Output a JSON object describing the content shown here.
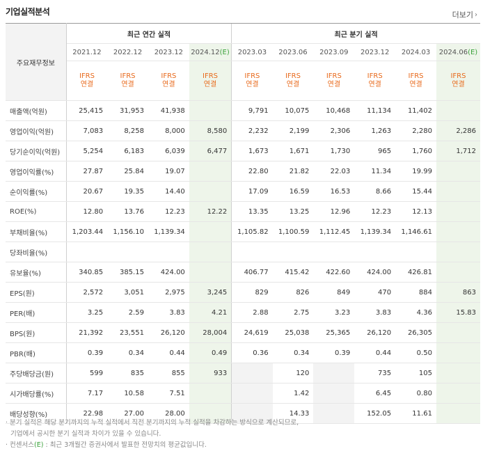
{
  "title": "기업실적분석",
  "more_label": "더보기",
  "row_header_label": "주요재무정보",
  "group_annual": "최근 연간 실적",
  "group_quarter": "최근 분기 실적",
  "periods": [
    {
      "date": "2021.12",
      "est": false
    },
    {
      "date": "2022.12",
      "est": false
    },
    {
      "date": "2023.12",
      "est": false
    },
    {
      "date": "2024.12(E)",
      "est": true
    },
    {
      "date": "2023.03",
      "est": false
    },
    {
      "date": "2023.06",
      "est": false
    },
    {
      "date": "2023.09",
      "est": false
    },
    {
      "date": "2023.12",
      "est": false
    },
    {
      "date": "2024.03",
      "est": false
    },
    {
      "date": "2024.06(E)",
      "est": true
    }
  ],
  "ifrs_line1": "IFRS",
  "ifrs_line2": "연결",
  "rows": [
    {
      "label": "매출액(억원)",
      "values": [
        "25,415",
        "31,953",
        "41,938",
        "",
        "9,791",
        "10,075",
        "10,468",
        "11,134",
        "11,402",
        ""
      ]
    },
    {
      "label": "영업이익(억원)",
      "values": [
        "7,083",
        "8,258",
        "8,000",
        "8,580",
        "2,232",
        "2,199",
        "2,306",
        "1,263",
        "2,280",
        "2,286"
      ]
    },
    {
      "label": "당기순이익(억원)",
      "values": [
        "5,254",
        "6,183",
        "6,039",
        "6,477",
        "1,673",
        "1,671",
        "1,730",
        "965",
        "1,760",
        "1,712"
      ]
    },
    {
      "label": "영업이익률(%)",
      "values": [
        "27.87",
        "25.84",
        "19.07",
        "",
        "22.80",
        "21.82",
        "22.03",
        "11.34",
        "19.99",
        ""
      ]
    },
    {
      "label": "순이익률(%)",
      "values": [
        "20.67",
        "19.35",
        "14.40",
        "",
        "17.09",
        "16.59",
        "16.53",
        "8.66",
        "15.44",
        ""
      ]
    },
    {
      "label": "ROE(%)",
      "values": [
        "12.80",
        "13.76",
        "12.23",
        "12.22",
        "13.35",
        "13.25",
        "12.96",
        "12.23",
        "12.13",
        ""
      ]
    },
    {
      "label": "부채비율(%)",
      "values": [
        "1,203.44",
        "1,156.10",
        "1,139.34",
        "",
        "1,105.82",
        "1,100.59",
        "1,112.45",
        "1,139.34",
        "1,146.61",
        ""
      ]
    },
    {
      "label": "당좌비율(%)",
      "values": [
        "",
        "",
        "",
        "",
        "",
        "",
        "",
        "",
        "",
        ""
      ]
    },
    {
      "label": "유보율(%)",
      "values": [
        "340.85",
        "385.15",
        "424.00",
        "",
        "406.77",
        "415.42",
        "422.60",
        "424.00",
        "426.81",
        ""
      ]
    },
    {
      "label": "EPS(원)",
      "values": [
        "2,572",
        "3,051",
        "2,975",
        "3,245",
        "829",
        "826",
        "849",
        "470",
        "884",
        "863"
      ]
    },
    {
      "label": "PER(배)",
      "values": [
        "3.25",
        "2.59",
        "3.83",
        "4.21",
        "2.88",
        "2.75",
        "3.23",
        "3.83",
        "4.36",
        "15.83"
      ]
    },
    {
      "label": "BPS(원)",
      "values": [
        "21,392",
        "23,551",
        "26,120",
        "28,004",
        "24,619",
        "25,038",
        "25,365",
        "26,120",
        "26,305",
        ""
      ]
    },
    {
      "label": "PBR(배)",
      "values": [
        "0.39",
        "0.34",
        "0.44",
        "0.49",
        "0.36",
        "0.34",
        "0.39",
        "0.44",
        "0.50",
        ""
      ]
    },
    {
      "label": "주당배당금(원)",
      "values": [
        "599",
        "835",
        "855",
        "933",
        "",
        "120",
        "",
        "735",
        "105",
        ""
      ]
    },
    {
      "label": "시가배당률(%)",
      "values": [
        "7.17",
        "10.58",
        "7.51",
        "",
        "",
        "1.42",
        "",
        "6.45",
        "0.80",
        ""
      ]
    },
    {
      "label": "배당성향(%)",
      "values": [
        "22.98",
        "27.00",
        "28.00",
        "",
        "",
        "14.33",
        "",
        "152.05",
        "11.61",
        ""
      ]
    }
  ],
  "footnote1": "분기 실적은 해당 분기까지의 누적 실적에서 직전 분기까지의 누적 실적을 차감하는 방식으로 계산되므로,",
  "footnote2": "기업에서 공시한 분기 실적과 차이가 있을 수 있습니다.",
  "footnote3_prefix": "컨센서스",
  "footnote3_e": "(E)",
  "footnote3_suffix": ": 최근 3개월간 증권사에서 발표한 전망치의 평균값입니다."
}
